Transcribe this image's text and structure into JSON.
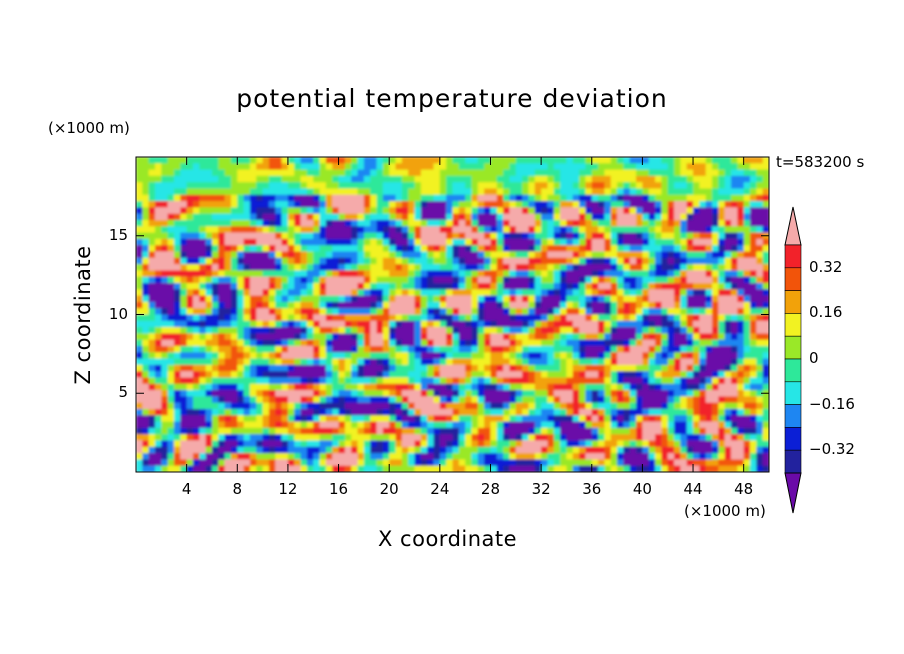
{
  "chart_data": {
    "type": "heatmap",
    "title": "potential temperature deviation",
    "xlabel": "X coordinate",
    "ylabel": "Z coordinate",
    "x_unit": "(×1000 m)",
    "y_unit": "(×1000 m)",
    "time_label": "t=583200 s",
    "xlim": [
      0,
      50
    ],
    "ylim": [
      0,
      20
    ],
    "x_ticks": [
      4,
      8,
      12,
      16,
      20,
      24,
      28,
      32,
      36,
      40,
      44,
      48
    ],
    "y_ticks": [
      5,
      10,
      15
    ],
    "colorbar": {
      "levels": [
        -0.4,
        -0.32,
        -0.24,
        -0.16,
        -0.08,
        0,
        0.08,
        0.16,
        0.24,
        0.32,
        0.4
      ],
      "labeled_levels": [
        "0.32",
        "0.16",
        "0",
        "−0.16",
        "−0.32"
      ],
      "colors": [
        "#6a0aa8",
        "#22229e",
        "#0b1fd6",
        "#1e86f2",
        "#26e6e6",
        "#2ee89a",
        "#9ae828",
        "#f2f222",
        "#f2a20a",
        "#f2540a",
        "#f2222a",
        "#f5aaaa"
      ],
      "extend": "both"
    },
    "description_note": "2D field of potential temperature deviation (K), range approx -0.4 to 0.4, layered turbulent structures"
  }
}
